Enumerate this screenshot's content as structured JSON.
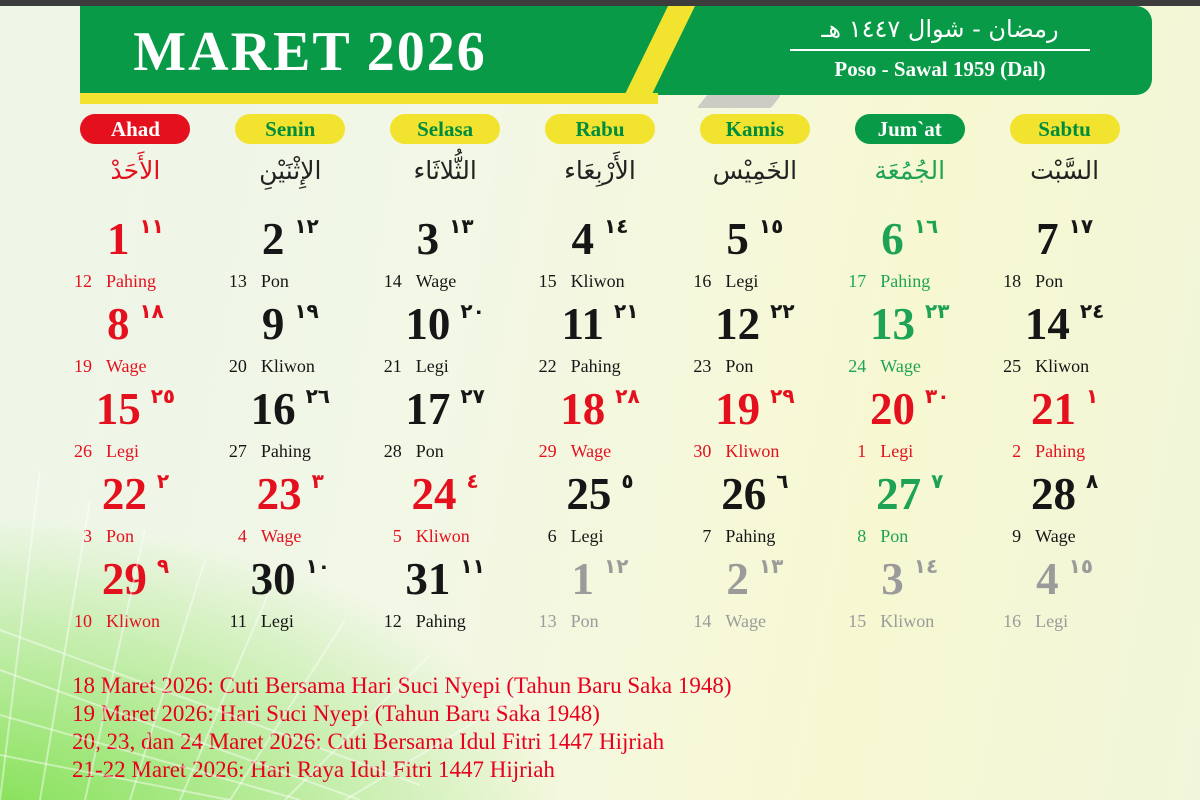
{
  "header": {
    "title": "MARET 2026",
    "hijri_line": "رمضان - شوال ١٤٤٧ هـ",
    "javanese_line": "Poso - Sawal 1959 (Dal)"
  },
  "colors": {
    "banner_green": "#089a46",
    "accent_yellow": "#f2e32e",
    "holiday_red": "#e4101e",
    "friday_green": "#1ea355",
    "next_month_gray": "#9b9b9b"
  },
  "weekdays": [
    {
      "label": "Ahad",
      "arabic": "الأَحَدْ",
      "pill": "red",
      "arabic_color": "red"
    },
    {
      "label": "Senin",
      "arabic": "الإِثْنَيْنِ",
      "pill": "yellow",
      "arabic_color": "black"
    },
    {
      "label": "Selasa",
      "arabic": "الثُّلاثَاء",
      "pill": "yellow",
      "arabic_color": "black"
    },
    {
      "label": "Rabu",
      "arabic": "الأَرْبِعَاء",
      "pill": "yellow",
      "arabic_color": "black"
    },
    {
      "label": "Kamis",
      "arabic": "الخَمِيْس",
      "pill": "yellow",
      "arabic_color": "black"
    },
    {
      "label": "Jum`at",
      "arabic": "الجُمُعَة",
      "pill": "green",
      "arabic_color": "green"
    },
    {
      "label": "Sabtu",
      "arabic": "السَّبْت",
      "pill": "yellow",
      "arabic_color": "black"
    }
  ],
  "weeks": [
    [
      {
        "greg": "1",
        "hijri": "١١",
        "jv": "12",
        "pasaran": "Pahing",
        "color": "red"
      },
      {
        "greg": "2",
        "hijri": "١٢",
        "jv": "13",
        "pasaran": "Pon",
        "color": "black"
      },
      {
        "greg": "3",
        "hijri": "١٣",
        "jv": "14",
        "pasaran": "Wage",
        "color": "black"
      },
      {
        "greg": "4",
        "hijri": "١٤",
        "jv": "15",
        "pasaran": "Kliwon",
        "color": "black"
      },
      {
        "greg": "5",
        "hijri": "١٥",
        "jv": "16",
        "pasaran": "Legi",
        "color": "black"
      },
      {
        "greg": "6",
        "hijri": "١٦",
        "jv": "17",
        "pasaran": "Pahing",
        "color": "green"
      },
      {
        "greg": "7",
        "hijri": "١٧",
        "jv": "18",
        "pasaran": "Pon",
        "color": "black"
      }
    ],
    [
      {
        "greg": "8",
        "hijri": "١٨",
        "jv": "19",
        "pasaran": "Wage",
        "color": "red"
      },
      {
        "greg": "9",
        "hijri": "١٩",
        "jv": "20",
        "pasaran": "Kliwon",
        "color": "black"
      },
      {
        "greg": "10",
        "hijri": "٢٠",
        "jv": "21",
        "pasaran": "Legi",
        "color": "black"
      },
      {
        "greg": "11",
        "hijri": "٢١",
        "jv": "22",
        "pasaran": "Pahing",
        "color": "black"
      },
      {
        "greg": "12",
        "hijri": "٢٢",
        "jv": "23",
        "pasaran": "Pon",
        "color": "black"
      },
      {
        "greg": "13",
        "hijri": "٢٣",
        "jv": "24",
        "pasaran": "Wage",
        "color": "green"
      },
      {
        "greg": "14",
        "hijri": "٢٤",
        "jv": "25",
        "pasaran": "Kliwon",
        "color": "black"
      }
    ],
    [
      {
        "greg": "15",
        "hijri": "٢٥",
        "jv": "26",
        "pasaran": "Legi",
        "color": "red"
      },
      {
        "greg": "16",
        "hijri": "٢٦",
        "jv": "27",
        "pasaran": "Pahing",
        "color": "black"
      },
      {
        "greg": "17",
        "hijri": "٢٧",
        "jv": "28",
        "pasaran": "Pon",
        "color": "black"
      },
      {
        "greg": "18",
        "hijri": "٢٨",
        "jv": "29",
        "pasaran": "Wage",
        "color": "red"
      },
      {
        "greg": "19",
        "hijri": "٢٩",
        "jv": "30",
        "pasaran": "Kliwon",
        "color": "red"
      },
      {
        "greg": "20",
        "hijri": "٣٠",
        "jv": "1",
        "pasaran": "Legi",
        "color": "red"
      },
      {
        "greg": "21",
        "hijri": "١",
        "jv": "2",
        "pasaran": "Pahing",
        "color": "red"
      }
    ],
    [
      {
        "greg": "22",
        "hijri": "٢",
        "jv": "3",
        "pasaran": "Pon",
        "color": "red"
      },
      {
        "greg": "23",
        "hijri": "٣",
        "jv": "4",
        "pasaran": "Wage",
        "color": "red"
      },
      {
        "greg": "24",
        "hijri": "٤",
        "jv": "5",
        "pasaran": "Kliwon",
        "color": "red"
      },
      {
        "greg": "25",
        "hijri": "٥",
        "jv": "6",
        "pasaran": "Legi",
        "color": "black"
      },
      {
        "greg": "26",
        "hijri": "٦",
        "jv": "7",
        "pasaran": "Pahing",
        "color": "black"
      },
      {
        "greg": "27",
        "hijri": "٧",
        "jv": "8",
        "pasaran": "Pon",
        "color": "green"
      },
      {
        "greg": "28",
        "hijri": "٨",
        "jv": "9",
        "pasaran": "Wage",
        "color": "black"
      }
    ],
    [
      {
        "greg": "29",
        "hijri": "٩",
        "jv": "10",
        "pasaran": "Kliwon",
        "color": "red"
      },
      {
        "greg": "30",
        "hijri": "١٠",
        "jv": "11",
        "pasaran": "Legi",
        "color": "black"
      },
      {
        "greg": "31",
        "hijri": "١١",
        "jv": "12",
        "pasaran": "Pahing",
        "color": "black"
      },
      {
        "greg": "1",
        "hijri": "١٢",
        "jv": "13",
        "pasaran": "Pon",
        "color": "gray"
      },
      {
        "greg": "2",
        "hijri": "١٣",
        "jv": "14",
        "pasaran": "Wage",
        "color": "gray"
      },
      {
        "greg": "3",
        "hijri": "١٤",
        "jv": "15",
        "pasaran": "Kliwon",
        "color": "gray"
      },
      {
        "greg": "4",
        "hijri": "١٥",
        "jv": "16",
        "pasaran": "Legi",
        "color": "gray"
      }
    ]
  ],
  "notes": [
    "18 Maret 2026: Cuti Bersama Hari Suci Nyepi (Tahun Baru Saka 1948)",
    "19 Maret 2026: Hari Suci Nyepi (Tahun Baru Saka 1948)",
    "20, 23, dan 24 Maret 2026: Cuti Bersama Idul Fitri 1447 Hijriah",
    "21-22 Maret 2026: Hari Raya Idul Fitri 1447 Hijriah"
  ]
}
